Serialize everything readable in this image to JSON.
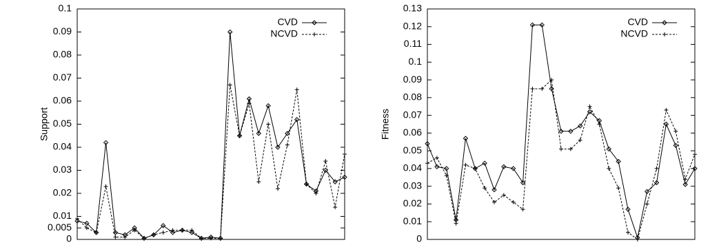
{
  "chart_data": [
    {
      "type": "line",
      "ylabel": "Support",
      "xlim": [
        0,
        28
      ],
      "ylim": [
        0,
        0.1
      ],
      "yticks": [
        0,
        0.005,
        0.01,
        0.02,
        0.03,
        0.04,
        0.05,
        0.06,
        0.07,
        0.08,
        0.09,
        0.1
      ],
      "legend": "upper right",
      "x": [
        0,
        1,
        2,
        3,
        4,
        5,
        6,
        7,
        8,
        9,
        10,
        11,
        12,
        13,
        14,
        15,
        16,
        17,
        18,
        19,
        20,
        21,
        22,
        23,
        24,
        25,
        26,
        27,
        28
      ],
      "series": [
        {
          "name": "CVD",
          "color": "#000000",
          "style": "solid",
          "marker": "diamond",
          "values": [
            0.008,
            0.007,
            0.003,
            0.042,
            0.003,
            0.002,
            0.005,
            0.0005,
            0.002,
            0.006,
            0.003,
            0.004,
            0.003,
            0.0005,
            0.001,
            0.0005,
            0.09,
            0.045,
            0.061,
            0.046,
            0.058,
            0.04,
            0.046,
            0.052,
            0.024,
            0.021,
            0.03,
            0.025,
            0.027
          ]
        },
        {
          "name": "NCVD",
          "color": "#000000",
          "style": "dashed",
          "marker": "plus",
          "values": [
            0.009,
            0.005,
            0.003,
            0.023,
            0.001,
            0.001,
            0.004,
            0.0005,
            0.002,
            0.003,
            0.004,
            0.004,
            0.004,
            0.0005,
            0.0005,
            0.0005,
            0.067,
            0.045,
            0.059,
            0.025,
            0.05,
            0.022,
            0.041,
            0.065,
            0.024,
            0.02,
            0.034,
            0.014,
            0.037
          ]
        }
      ]
    },
    {
      "type": "line",
      "ylabel": "Fitness",
      "xlim": [
        0,
        28
      ],
      "ylim": [
        0,
        0.13
      ],
      "yticks": [
        0,
        0.01,
        0.02,
        0.03,
        0.04,
        0.05,
        0.06,
        0.07,
        0.08,
        0.09,
        0.1,
        0.11,
        0.12,
        0.13
      ],
      "legend": "upper right",
      "x": [
        0,
        1,
        2,
        3,
        4,
        5,
        6,
        7,
        8,
        9,
        10,
        11,
        12,
        13,
        14,
        15,
        16,
        17,
        18,
        19,
        20,
        21,
        22,
        23,
        24,
        25,
        26,
        27,
        28
      ],
      "series": [
        {
          "name": "CVD",
          "color": "#000000",
          "style": "solid",
          "marker": "diamond",
          "values": [
            0.054,
            0.041,
            0.04,
            0.011,
            0.057,
            0.04,
            0.043,
            0.028,
            0.041,
            0.04,
            0.032,
            0.121,
            0.121,
            0.085,
            0.061,
            0.061,
            0.064,
            0.072,
            0.067,
            0.051,
            0.044,
            0.017,
            0.001,
            0.027,
            0.032,
            0.065,
            0.053,
            0.031,
            0.04
          ]
        },
        {
          "name": "NCVD",
          "color": "#000000",
          "style": "dashed",
          "marker": "plus",
          "values": [
            0.043,
            0.046,
            0.036,
            0.009,
            0.042,
            0.04,
            0.029,
            0.021,
            0.025,
            0.021,
            0.017,
            0.085,
            0.085,
            0.09,
            0.051,
            0.051,
            0.056,
            0.075,
            0.065,
            0.04,
            0.029,
            0.004,
            0.0,
            0.02,
            0.04,
            0.073,
            0.061,
            0.034,
            0.048
          ]
        }
      ]
    }
  ]
}
